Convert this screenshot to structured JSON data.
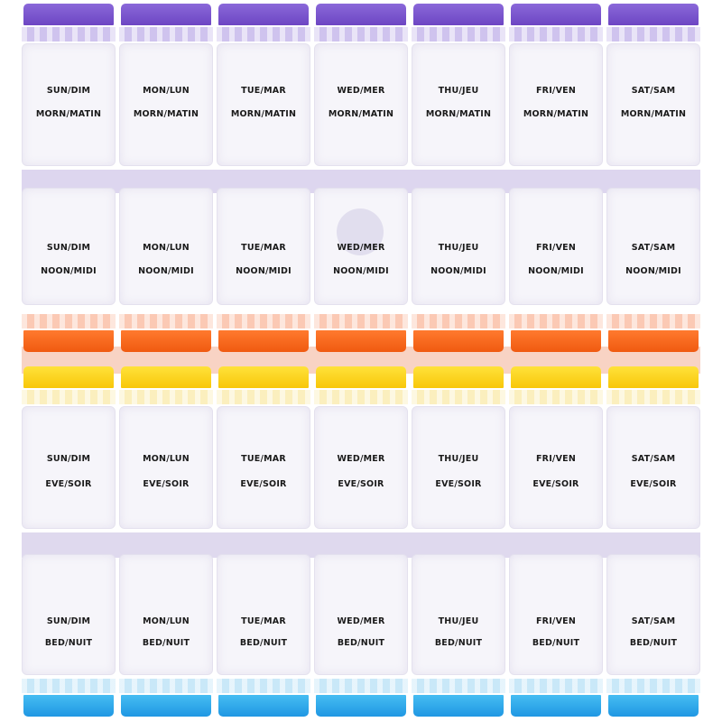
{
  "days": [
    "SUN/DIM",
    "MON/LUN",
    "TUE/MAR",
    "WED/MER",
    "THU/JEU",
    "FRI/VEN",
    "SAT/SAM"
  ],
  "rows": [
    {
      "time": "MORN/MATIN",
      "tab_color": "#7850cc",
      "tab_position": "top"
    },
    {
      "time": "NOON/MIDI",
      "tab_color": "#f4631a",
      "tab_position": "bottom"
    },
    {
      "time": "EVE/SOIR",
      "tab_color": "#fad420",
      "tab_position": "top"
    },
    {
      "time": "BED/NUIT",
      "tab_color": "#2fa6ea",
      "tab_position": "bottom"
    }
  ]
}
